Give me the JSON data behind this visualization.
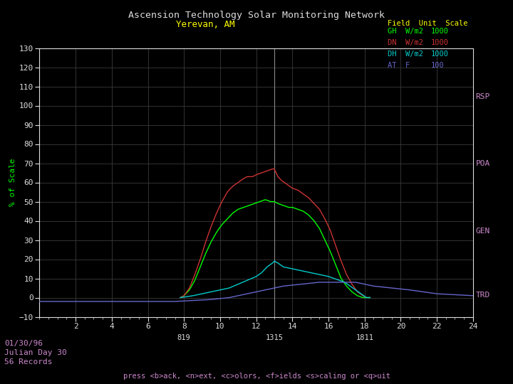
{
  "title1": "Ascension Technology Solar Monitoring Network",
  "title2": "Yerevan, AM",
  "legend_header": "Field  Unit  Scale",
  "legend_items": [
    {
      "label": "GH",
      "unit": "W/m2",
      "scale": "1000",
      "color": "#00ff00"
    },
    {
      "label": "DN",
      "unit": "W/m2",
      "scale": "1000",
      "color": "#cc3333"
    },
    {
      "label": "DH",
      "unit": "W/m2",
      "scale": "1000",
      "color": "#00cccc"
    },
    {
      "label": "AT",
      "unit": "F",
      "scale": "100",
      "color": "#6666cc"
    }
  ],
  "right_labels": [
    "RSP",
    "POA",
    "GEN",
    "TRD"
  ],
  "right_label_color": "#cc88cc",
  "ylabel": "% of Scale",
  "ylabel_color": "#00ff00",
  "date_text": "01/30/96\nJulian Day 30\n56 Records",
  "footer_text": "press <b>ack, <n>ext, <c>olors, <f>ields <s>caling or <q>uit",
  "xlim": [
    0,
    24
  ],
  "ylim": [
    -10,
    130
  ],
  "xticks": [
    2,
    4,
    6,
    8,
    10,
    12,
    14,
    16,
    18,
    20,
    22,
    24
  ],
  "yticks": [
    -10,
    0,
    10,
    20,
    30,
    40,
    50,
    60,
    70,
    80,
    90,
    100,
    110,
    120,
    130
  ],
  "secondary_xticks": [
    {
      "x": 8,
      "label": "819"
    },
    {
      "x": 13,
      "label": "1315"
    },
    {
      "x": 18,
      "label": "1811"
    }
  ],
  "crosshair_x": 13,
  "bg_color": "#000000",
  "grid_color": "#3a3a3a",
  "tick_color": "#dddddd",
  "title_color": "#dddddd",
  "subtitle_color": "#ffff00",
  "GH_x": [
    7.8,
    8.0,
    8.3,
    8.6,
    8.9,
    9.2,
    9.5,
    9.8,
    10.1,
    10.4,
    10.7,
    11.0,
    11.3,
    11.6,
    11.9,
    12.2,
    12.5,
    12.8,
    13.0,
    13.2,
    13.5,
    13.8,
    14.0,
    14.3,
    14.6,
    14.9,
    15.2,
    15.5,
    15.8,
    16.1,
    16.4,
    16.7,
    17.0,
    17.3,
    17.6,
    17.9,
    18.1,
    18.3
  ],
  "GH_y": [
    0,
    1,
    4,
    9,
    16,
    23,
    29,
    34,
    38,
    41,
    44,
    46,
    47,
    48,
    49,
    50,
    51,
    50,
    50,
    49,
    48,
    47,
    47,
    46,
    45,
    43,
    40,
    36,
    30,
    24,
    17,
    10,
    6,
    3,
    1,
    0,
    0,
    0
  ],
  "DN_x": [
    7.8,
    8.0,
    8.3,
    8.6,
    8.9,
    9.2,
    9.5,
    9.8,
    10.1,
    10.4,
    10.7,
    11.0,
    11.3,
    11.5,
    11.8,
    12.0,
    12.3,
    12.6,
    12.9,
    13.0,
    13.05,
    13.1,
    13.2,
    13.4,
    13.7,
    14.0,
    14.3,
    14.6,
    14.9,
    15.2,
    15.5,
    15.8,
    16.1,
    16.4,
    16.7,
    17.0,
    17.3,
    17.6,
    17.9,
    18.1,
    18.3
  ],
  "DN_y": [
    0,
    1,
    5,
    12,
    20,
    29,
    37,
    44,
    50,
    55,
    58,
    60,
    62,
    63,
    63,
    64,
    65,
    66,
    67,
    67,
    66,
    65,
    63,
    61,
    59,
    57,
    56,
    54,
    52,
    49,
    46,
    41,
    35,
    27,
    19,
    12,
    7,
    3,
    1,
    0,
    0
  ],
  "DH_x": [
    7.8,
    8.5,
    9.0,
    9.5,
    10.0,
    10.5,
    11.0,
    11.5,
    12.0,
    12.3,
    12.6,
    12.9,
    13.0,
    13.2,
    13.5,
    14.0,
    14.5,
    15.0,
    15.5,
    16.0,
    16.3,
    16.6,
    16.9,
    17.2,
    17.5,
    17.8,
    18.1,
    18.3
  ],
  "DH_y": [
    0,
    1,
    2,
    3,
    4,
    5,
    7,
    9,
    11,
    13,
    16,
    18,
    19,
    18,
    16,
    15,
    14,
    13,
    12,
    11,
    10,
    9,
    8,
    6,
    4,
    2,
    0,
    0
  ],
  "AT_x": [
    0,
    2,
    4,
    6,
    7.5,
    8.5,
    9.5,
    10.5,
    11.5,
    12.5,
    13.5,
    14.5,
    15.5,
    16.5,
    17.5,
    18.0,
    18.5,
    19.5,
    20.5,
    22,
    24
  ],
  "AT_y": [
    -2,
    -2,
    -2,
    -2,
    -2,
    -1.5,
    -1,
    0,
    2,
    4,
    6,
    7,
    8,
    8,
    8,
    7,
    6,
    5,
    4,
    2,
    1
  ]
}
